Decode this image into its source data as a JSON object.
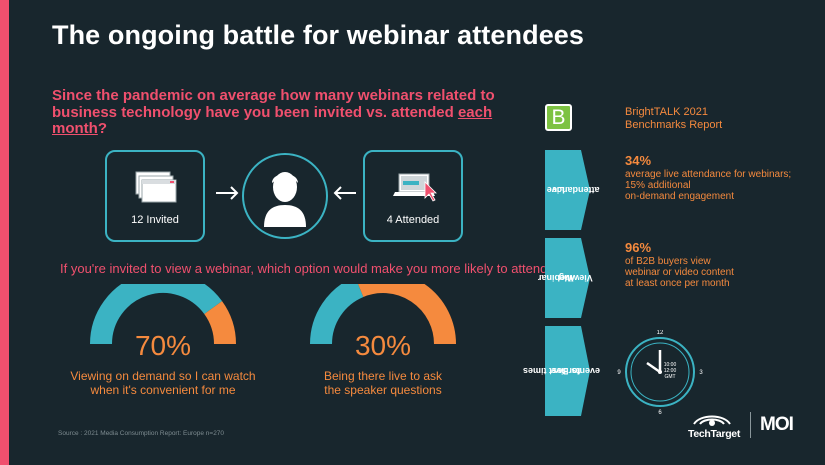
{
  "title": "The ongoing battle for webinar attendees",
  "question": {
    "text_before": "Since the pandemic on average how many webinars related to business technology have you been invited vs. attended ",
    "underlined": "each month",
    "text_after": "?"
  },
  "invited": {
    "label": "12 Invited"
  },
  "attended": {
    "label": "4 Attended"
  },
  "sub_question": "If you're invited to view a webinar, which option would make you more likely to attend?",
  "gauges": [
    {
      "percent": "70%",
      "value": 70,
      "caption_line1": "Viewing on demand so I can watch",
      "caption_line2": "when it's convenient for me"
    },
    {
      "percent": "30%",
      "value": 30,
      "caption_line1": "Being there live to ask",
      "caption_line2": "the speaker questions"
    }
  ],
  "source": "Source : 2021 Media Consumption Report: Europe n=270",
  "report": {
    "logo_letter": "B",
    "line1": "BrightTALK 2021",
    "line2": "Benchmarks Report"
  },
  "tabs": [
    {
      "line1": "Live",
      "line2": "attendance",
      "line3": ""
    },
    {
      "line1": "Webinar",
      "line2": "Viewing",
      "line3": ""
    },
    {
      "line1": "Best times",
      "line2": "for live",
      "line3": "events"
    }
  ],
  "stats": [
    {
      "pct": "34%",
      "line1": "average live attendance for webinars;",
      "line2": "15% additional",
      "line3": "on-demand engagement"
    },
    {
      "pct": "96%",
      "line1": "of B2B buyers view",
      "line2": "webinar or video content",
      "line3": "at least once per month"
    }
  ],
  "clock": {
    "n12": "12",
    "n3": "3",
    "n6": "6",
    "n9": "9",
    "time1": "10:00",
    "time2": "12:00",
    "zone": "GMT"
  },
  "brands": {
    "techtarget": "TechTarget",
    "moi": "MOI"
  },
  "colors": {
    "background": "#18262d",
    "accent_pink": "#f0506e",
    "teal": "#3bb3c3",
    "orange": "#f58a3e",
    "green": "#7dc242"
  }
}
